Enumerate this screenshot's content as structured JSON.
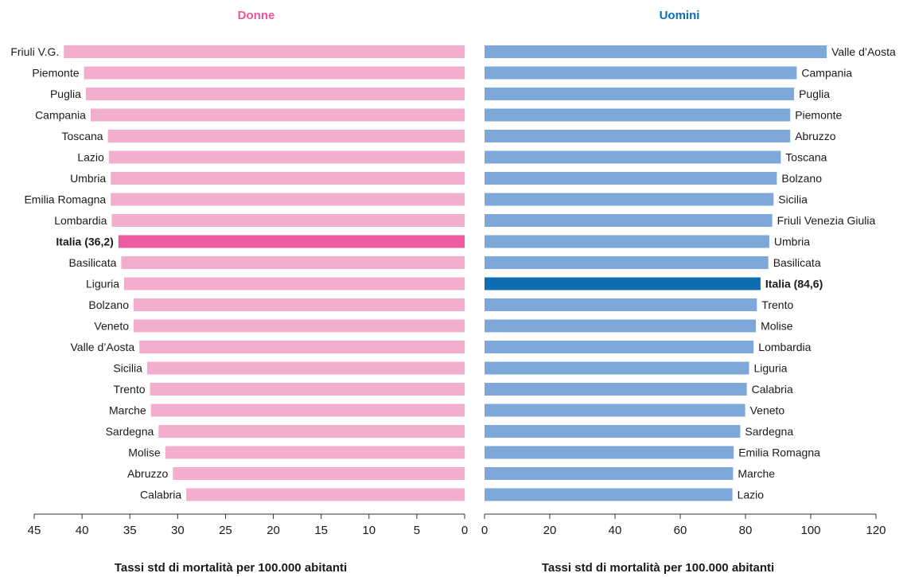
{
  "colors": {
    "donne_bar": "#f4aecd",
    "donne_highlight": "#ec5aa0",
    "donne_title": "#e8579d",
    "uomini_bar": "#7ea8da",
    "uomini_highlight": "#0f6db3",
    "uomini_title": "#0f6db3",
    "axis": "#333333",
    "text": "#1a1a1a"
  },
  "chart_data": [
    {
      "type": "bar",
      "orientation": "horizontal",
      "x_direction": "reversed",
      "title": "Donne",
      "xlabel": "Tassi std di mortalità per 100.000 abitanti",
      "xlim": [
        0,
        45
      ],
      "ticks": [
        "45",
        "40",
        "35",
        "30",
        "25",
        "20",
        "15",
        "10",
        "5",
        "0"
      ],
      "categories": [
        "Friuli V.G.",
        "Piemonte",
        "Puglia",
        "Campania",
        "Toscana",
        "Lazio",
        "Umbria",
        "Emilia Romagna",
        "Lombardia",
        "Italia (36,2)",
        "Basilicata",
        "Liguria",
        "Bolzano",
        "Veneto",
        "Valle d’Aosta",
        "Sicilia",
        "Trento",
        "Marche",
        "Sardegna",
        "Molise",
        "Abruzzo",
        "Calabria"
      ],
      "values": [
        41.9,
        39.8,
        39.6,
        39.1,
        37.3,
        37.2,
        37.0,
        37.0,
        36.9,
        36.2,
        35.9,
        35.6,
        34.6,
        34.6,
        34.0,
        33.2,
        32.9,
        32.8,
        32.0,
        31.3,
        30.5,
        29.1
      ],
      "highlight": "Italia (36,2)"
    },
    {
      "type": "bar",
      "orientation": "horizontal",
      "title": "Uomini",
      "xlabel": "Tassi std di mortalità per 100.000 abitanti",
      "xlim": [
        0,
        120
      ],
      "ticks": [
        "0",
        "20",
        "40",
        "60",
        "80",
        "100",
        "120"
      ],
      "categories": [
        "Valle d’Aosta",
        "Campania",
        "Puglia",
        "Piemonte",
        "Abruzzo",
        "Toscana",
        "Bolzano",
        "Sicilia",
        "Friuli Venezia Giulia",
        "Umbria",
        "Basilicata",
        "Italia (84,6)",
        "Trento",
        "Molise",
        "Lombardia",
        "Liguria",
        "Calabria",
        "Veneto",
        "Sardegna",
        "Emilia Romagna",
        "Marche",
        "Lazio"
      ],
      "values": [
        104.9,
        95.7,
        94.9,
        93.7,
        93.7,
        90.8,
        89.6,
        88.6,
        88.2,
        87.3,
        87.0,
        84.6,
        83.5,
        83.2,
        82.5,
        81.1,
        80.4,
        79.9,
        78.4,
        76.4,
        76.2,
        76.0
      ],
      "highlight": "Italia (84,6)"
    }
  ]
}
